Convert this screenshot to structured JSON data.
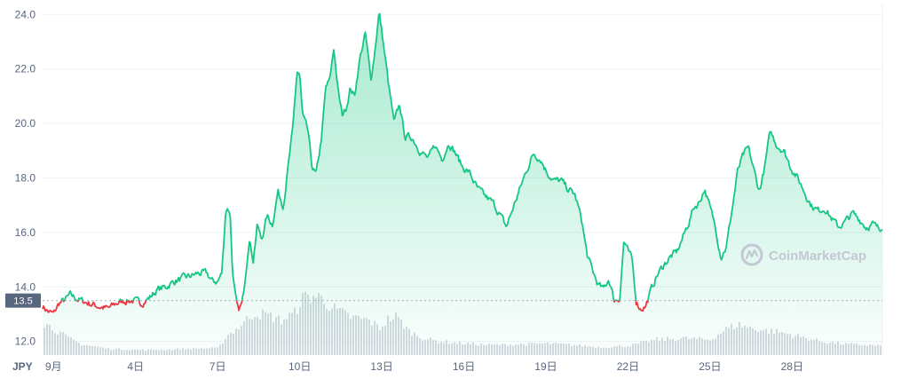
{
  "chart_data": {
    "type": "area",
    "title": "",
    "xlabel": "",
    "ylabel": "",
    "currency_label": "JPY",
    "ylim": [
      11.5,
      24.4
    ],
    "y_ticks": [
      12.0,
      14.0,
      16.0,
      18.0,
      20.0,
      22.0,
      24.0
    ],
    "y_tick_labels": [
      "12.0",
      "14.0",
      "16.0",
      "18.0",
      "20.0",
      "22.0",
      "24.0"
    ],
    "xlim": [
      0.6,
      31.3
    ],
    "x_ticks": [
      1,
      4,
      7,
      10,
      13,
      16,
      19,
      22,
      25,
      28
    ],
    "x_tick_labels": [
      "9月",
      "4日",
      "7日",
      "10日",
      "13日",
      "16日",
      "19日",
      "22日",
      "25日",
      "28日"
    ],
    "reference_value": 13.5,
    "reference_label": "13.5",
    "grid": true,
    "colors": {
      "above": "#16c784",
      "below": "#ea3943",
      "fill": "#16c784",
      "grid": "#eff2f5",
      "volume": "#d5d9e0",
      "ref_line": "#a6b0c3",
      "ref_label_bg": "#58667e",
      "axis_text": "#58667e",
      "watermark": "#c3c8d2"
    },
    "price_series": {
      "name": "",
      "x": [
        0.6,
        0.8,
        1.0,
        1.2,
        1.4,
        1.6,
        1.8,
        2.0,
        2.3,
        2.6,
        3.0,
        3.3,
        3.6,
        3.9,
        4.2,
        4.5,
        4.8,
        5.1,
        5.4,
        5.7,
        6.0,
        6.3,
        6.6,
        6.8,
        7.0,
        7.15,
        7.3,
        7.45,
        7.55,
        7.65,
        7.75,
        7.9,
        8.0,
        8.15,
        8.3,
        8.45,
        8.6,
        8.8,
        9.0,
        9.2,
        9.4,
        9.6,
        9.75,
        9.9,
        10.0,
        10.1,
        10.3,
        10.45,
        10.6,
        10.8,
        10.95,
        11.1,
        11.25,
        11.4,
        11.55,
        11.7,
        11.85,
        12.0,
        12.2,
        12.4,
        12.6,
        12.75,
        12.9,
        13.05,
        13.25,
        13.45,
        13.65,
        13.85,
        14.1,
        14.4,
        14.7,
        14.95,
        15.2,
        15.45,
        15.7,
        15.95,
        16.2,
        16.5,
        16.8,
        17.05,
        17.3,
        17.55,
        17.8,
        18.05,
        18.3,
        18.55,
        18.8,
        19.05,
        19.3,
        19.55,
        19.8,
        20.05,
        20.3,
        20.5,
        20.7,
        20.9,
        21.1,
        21.3,
        21.5,
        21.7,
        21.85,
        22.0,
        22.15,
        22.3,
        22.45,
        22.65,
        22.85,
        23.05,
        23.3,
        23.55,
        23.8,
        24.0,
        24.2,
        24.4,
        24.6,
        24.8,
        25.0,
        25.2,
        25.4,
        25.6,
        25.8,
        26.0,
        26.2,
        26.4,
        26.6,
        26.8,
        27.0,
        27.2,
        27.45,
        27.7,
        27.95,
        28.2,
        28.45,
        28.7,
        28.95,
        29.2,
        29.45,
        29.7,
        29.95,
        30.2,
        30.45,
        30.7,
        30.95,
        31.2,
        31.3
      ],
      "values": [
        13.3,
        13.1,
        13.0,
        13.4,
        13.5,
        13.7,
        13.6,
        13.5,
        13.4,
        13.3,
        13.2,
        13.4,
        13.5,
        13.5,
        13.4,
        13.6,
        13.9,
        14.0,
        14.2,
        14.3,
        14.4,
        14.5,
        14.5,
        14.2,
        14.2,
        14.5,
        16.9,
        16.8,
        14.5,
        13.6,
        13.1,
        13.4,
        14.3,
        15.8,
        15.0,
        16.3,
        15.7,
        16.6,
        16.3,
        17.5,
        17.0,
        18.6,
        19.8,
        21.9,
        21.8,
        20.3,
        19.7,
        18.4,
        18.1,
        19.5,
        21.3,
        21.6,
        22.8,
        21.2,
        20.3,
        20.6,
        21.3,
        21.0,
        22.4,
        23.3,
        21.6,
        22.7,
        24.1,
        23.0,
        21.4,
        20.0,
        20.7,
        19.5,
        19.5,
        19.0,
        18.7,
        19.2,
        18.7,
        19.3,
        18.9,
        18.4,
        18.2,
        17.6,
        17.3,
        17.1,
        16.7,
        16.2,
        16.9,
        17.6,
        18.3,
        18.9,
        18.7,
        18.2,
        17.9,
        17.9,
        17.6,
        17.4,
        16.5,
        15.2,
        14.6,
        14.1,
        13.9,
        14.3,
        13.5,
        13.6,
        15.7,
        15.3,
        15.0,
        13.5,
        13.2,
        13.3,
        13.9,
        14.4,
        14.8,
        15.1,
        15.3,
        15.8,
        16.3,
        16.9,
        17.1,
        17.6,
        16.9,
        16.2,
        15.1,
        15.5,
        16.8,
        18.2,
        18.8,
        19.1,
        18.3,
        17.5,
        18.4,
        19.7,
        19.2,
        19.0,
        18.4,
        18.0,
        17.5,
        17.0,
        16.8,
        16.9,
        16.5,
        16.2,
        16.4,
        16.7,
        16.5,
        16.2,
        16.3,
        16.1,
        16.3
      ],
      "jitter_seed": 7
    },
    "volume_series": {
      "name": "",
      "x": [
        0.6,
        1.0,
        1.5,
        2.0,
        3.0,
        4.0,
        5.0,
        6.0,
        7.0,
        7.3,
        7.8,
        8.3,
        8.8,
        9.3,
        9.8,
        10.0,
        10.4,
        10.8,
        11.2,
        11.8,
        12.5,
        12.9,
        13.2,
        13.5,
        14.0,
        14.5,
        15.0,
        16.0,
        17.0,
        18.0,
        19.0,
        20.0,
        21.0,
        22.0,
        23.0,
        24.0,
        25.0,
        25.5,
        26.0,
        26.5,
        27.0,
        27.5,
        28.0,
        28.5,
        29.0,
        30.0,
        31.3
      ],
      "values": [
        0.42,
        0.34,
        0.22,
        0.14,
        0.08,
        0.07,
        0.07,
        0.08,
        0.09,
        0.25,
        0.38,
        0.55,
        0.52,
        0.45,
        0.55,
        0.72,
        0.78,
        0.74,
        0.6,
        0.5,
        0.45,
        0.35,
        0.47,
        0.5,
        0.3,
        0.22,
        0.18,
        0.15,
        0.13,
        0.14,
        0.15,
        0.13,
        0.1,
        0.12,
        0.2,
        0.22,
        0.2,
        0.33,
        0.4,
        0.35,
        0.32,
        0.3,
        0.26,
        0.22,
        0.18,
        0.14,
        0.12
      ],
      "max_height_fraction": 0.73
    },
    "watermark": {
      "text": "CoinMarketCap",
      "icon": "coinmarketcap-logo-icon"
    }
  }
}
